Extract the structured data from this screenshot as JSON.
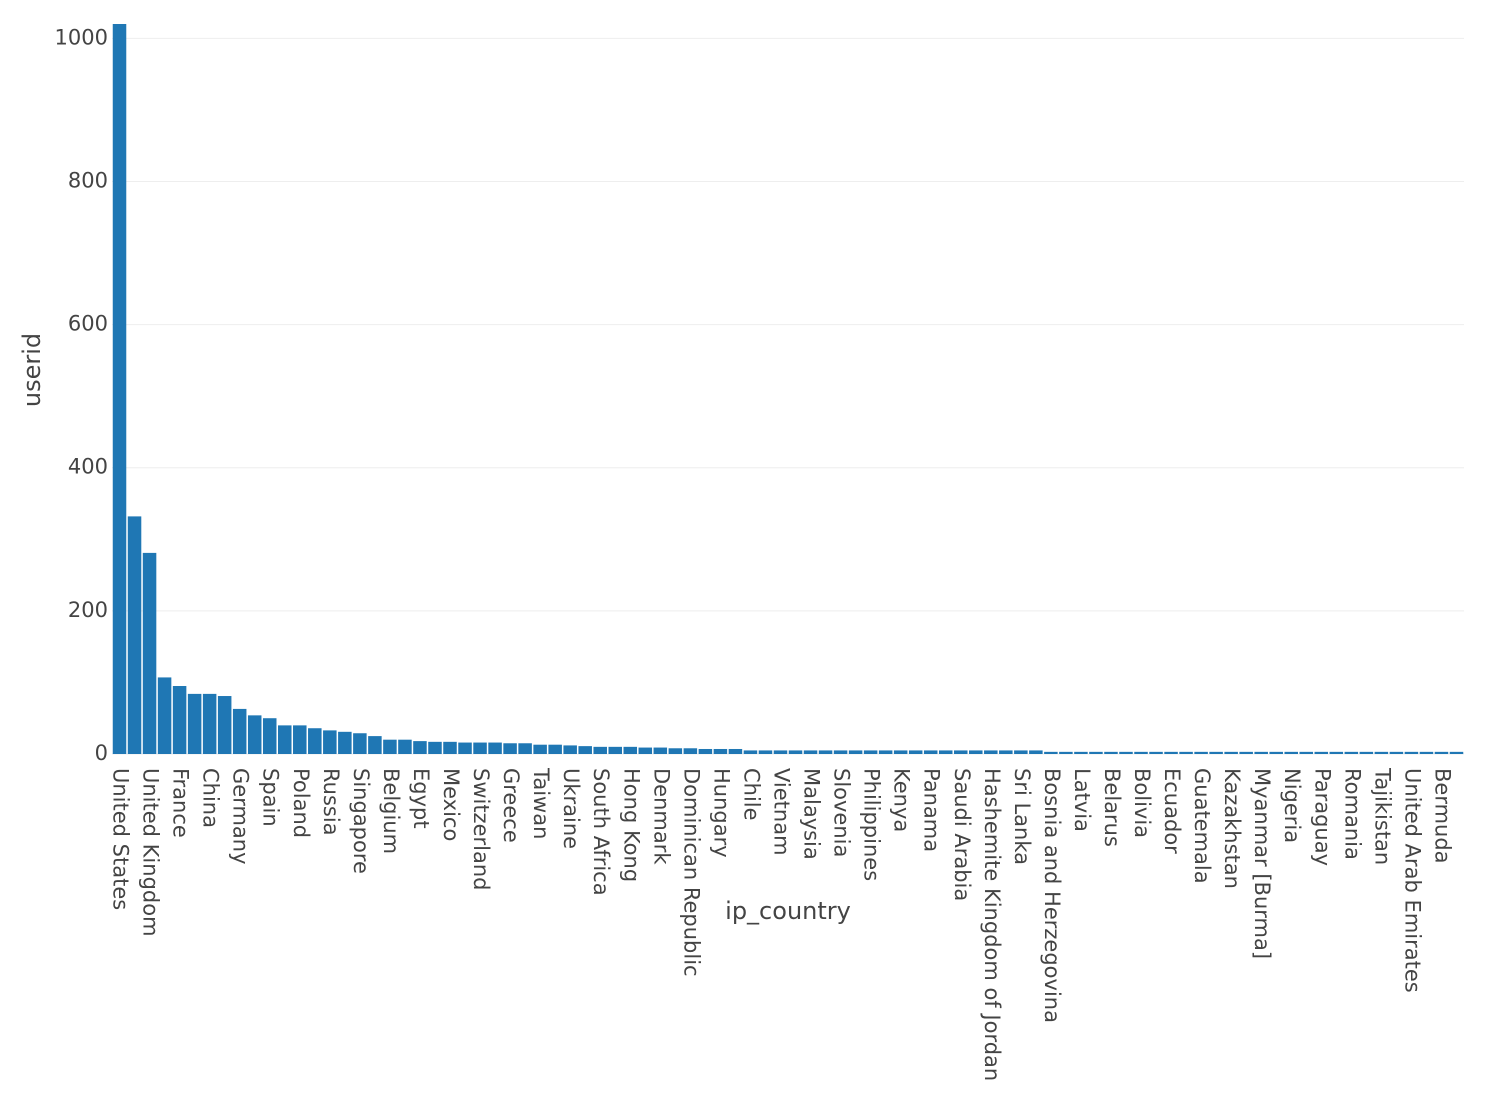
{
  "chart_data": {
    "type": "bar",
    "x_label": "ip_country",
    "y_label": "userid",
    "categories": [
      "United States",
      null,
      "United Kingdom",
      null,
      "France",
      null,
      "China",
      null,
      "Germany",
      null,
      "Spain",
      null,
      "Poland",
      null,
      "Russia",
      null,
      "Singapore",
      null,
      "Belgium",
      null,
      "Egypt",
      null,
      "Mexico",
      null,
      "Switzerland",
      null,
      "Greece",
      null,
      "Taiwan",
      null,
      "Ukraine",
      null,
      "South Africa",
      null,
      "Hong Kong",
      null,
      "Denmark",
      null,
      "Dominican Republic",
      null,
      "Hungary",
      null,
      "Chile",
      null,
      "Vietnam",
      null,
      "Malaysia",
      null,
      "Slovenia",
      null,
      "Philippines",
      null,
      "Kenya",
      null,
      "Panama",
      null,
      "Saudi Arabia",
      null,
      "Hashemite Kingdom of Jordan",
      null,
      "Sri Lanka",
      null,
      "Bosnia and Herzegovina",
      null,
      "Latvia",
      null,
      "Belarus",
      null,
      "Bolivia",
      null,
      "Ecuador",
      null,
      "Guatemala",
      null,
      "Kazakhstan",
      null,
      "Myanmar [Burma]",
      null,
      "Nigeria",
      null,
      "Paraguay",
      null,
      "Romania",
      null,
      "Tajikistan",
      null,
      "United Arab Emirates",
      null,
      "Bermuda",
      null
    ],
    "values": [
      1020,
      332,
      281,
      107,
      95,
      84,
      84,
      81,
      63,
      54,
      50,
      40,
      40,
      36,
      33,
      31,
      29,
      25,
      20,
      20,
      18,
      17,
      17,
      16,
      16,
      16,
      15,
      15,
      13,
      13,
      12,
      11,
      10,
      10,
      10,
      9,
      9,
      8,
      8,
      7,
      7,
      7,
      5,
      5,
      5,
      5,
      5,
      5,
      5,
      5,
      5,
      5,
      5,
      5,
      5,
      5,
      5,
      5,
      5,
      5,
      5,
      5,
      3,
      3,
      3,
      3,
      3,
      3,
      3,
      3,
      3,
      3,
      3,
      3,
      3,
      3,
      3,
      3,
      3,
      3,
      3,
      3,
      3,
      3,
      3,
      3,
      3,
      3,
      3,
      3
    ],
    "color": "#1f77b4",
    "ylim": [
      0,
      1020
    ],
    "yticks": [
      0,
      200,
      400,
      600,
      800,
      1000
    ],
    "grid": true
  }
}
